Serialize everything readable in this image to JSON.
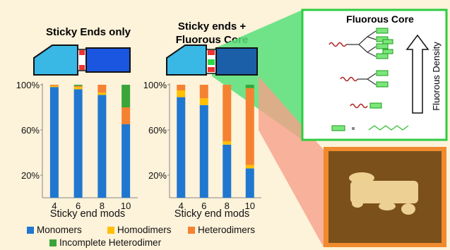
{
  "panels": {
    "left_title": "Sticky Ends only",
    "right_title_line1": "Sticky ends +",
    "right_title_line2": "Fluorous Core"
  },
  "fluor": {
    "title": "Fluorous Core",
    "arrow_label": "Fluorous Density"
  },
  "legend": {
    "monomers": "Monomers",
    "homodimers": "Homodimers",
    "heterodimers": "Heterodimers",
    "incomplete": "Incomplete Heterodimer"
  },
  "colors": {
    "monomers": "#1f77d0",
    "homodimers": "#ffc000",
    "heterodimers": "#f58231",
    "incomplete": "#3aa63a",
    "background": "#fdf2da",
    "fluor_box_border": "#2ecc40"
  },
  "chart_data": [
    {
      "type": "bar",
      "stacked": true,
      "title": "Sticky Ends only",
      "xlabel": "Sticky end mods",
      "ylabel": "",
      "categories": [
        "4",
        "6",
        "8",
        "10"
      ],
      "y_ticks": [
        "100%",
        "60%",
        "20%"
      ],
      "ylim": [
        0,
        100
      ],
      "series": [
        {
          "name": "Monomers",
          "values": [
            98,
            96,
            91,
            65
          ]
        },
        {
          "name": "Homodimers",
          "values": [
            1,
            2,
            2,
            0
          ]
        },
        {
          "name": "Heterodimers",
          "values": [
            1,
            1,
            7,
            15
          ]
        },
        {
          "name": "Incomplete Heterodimer",
          "values": [
            0,
            1,
            0,
            20
          ]
        }
      ]
    },
    {
      "type": "bar",
      "stacked": true,
      "title": "Sticky ends + Fluorous Core",
      "xlabel": "Sticky end mods",
      "ylabel": "",
      "categories": [
        "4",
        "6",
        "8",
        "10"
      ],
      "y_ticks": [
        "100%",
        "60%",
        "20%"
      ],
      "ylim": [
        0,
        100
      ],
      "series": [
        {
          "name": "Monomers",
          "values": [
            89,
            82,
            47,
            26
          ]
        },
        {
          "name": "Homodimers",
          "values": [
            6,
            6,
            3,
            3
          ]
        },
        {
          "name": "Heterodimers",
          "values": [
            5,
            12,
            50,
            68
          ]
        },
        {
          "name": "Incomplete Heterodimer",
          "values": [
            0,
            0,
            0,
            3
          ]
        }
      ]
    }
  ]
}
